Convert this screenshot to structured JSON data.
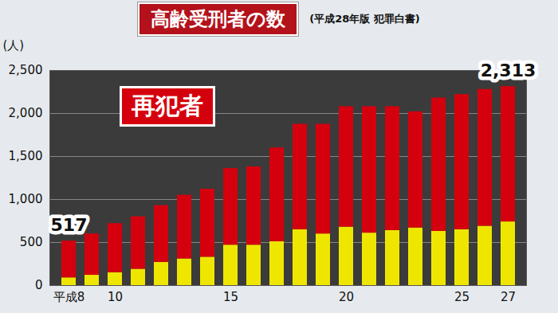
{
  "chart_data": {
    "type": "bar",
    "stacked": true,
    "title": "高齢受刑者の数",
    "subtitle": "(平成28年版 犯罪白書)",
    "ylabel": "(人)",
    "categories": [
      "平成8",
      null,
      "10",
      null,
      null,
      null,
      null,
      "15",
      null,
      null,
      null,
      null,
      "20",
      null,
      null,
      null,
      null,
      "25",
      null,
      "27"
    ],
    "series": [
      {
        "color": "#efe600",
        "values": [
          90,
          120,
          150,
          190,
          270,
          310,
          330,
          470,
          470,
          510,
          650,
          600,
          680,
          610,
          640,
          670,
          630,
          650,
          690,
          740
        ]
      },
      {
        "name": "再犯者",
        "color": "#d5000d",
        "values": [
          427,
          480,
          570,
          610,
          660,
          740,
          790,
          890,
          910,
          1090,
          1225,
          1275,
          1400,
          1470,
          1440,
          1350,
          1550,
          1570,
          1590,
          1573
        ]
      }
    ],
    "annotations": [
      {
        "category": "平成8",
        "value": 517,
        "label": "517"
      },
      {
        "category": "27",
        "value": 2313,
        "label": "2,313"
      }
    ],
    "ylim": [
      0,
      2500
    ],
    "yticks": [
      0,
      500,
      {
        "value": 1000,
        "label": "1,000"
      },
      {
        "value": 1500,
        "label": "1,500"
      },
      {
        "value": 2000,
        "label": "2,000"
      },
      {
        "value": 2500,
        "label": "2,500"
      }
    ],
    "grid": true
  }
}
